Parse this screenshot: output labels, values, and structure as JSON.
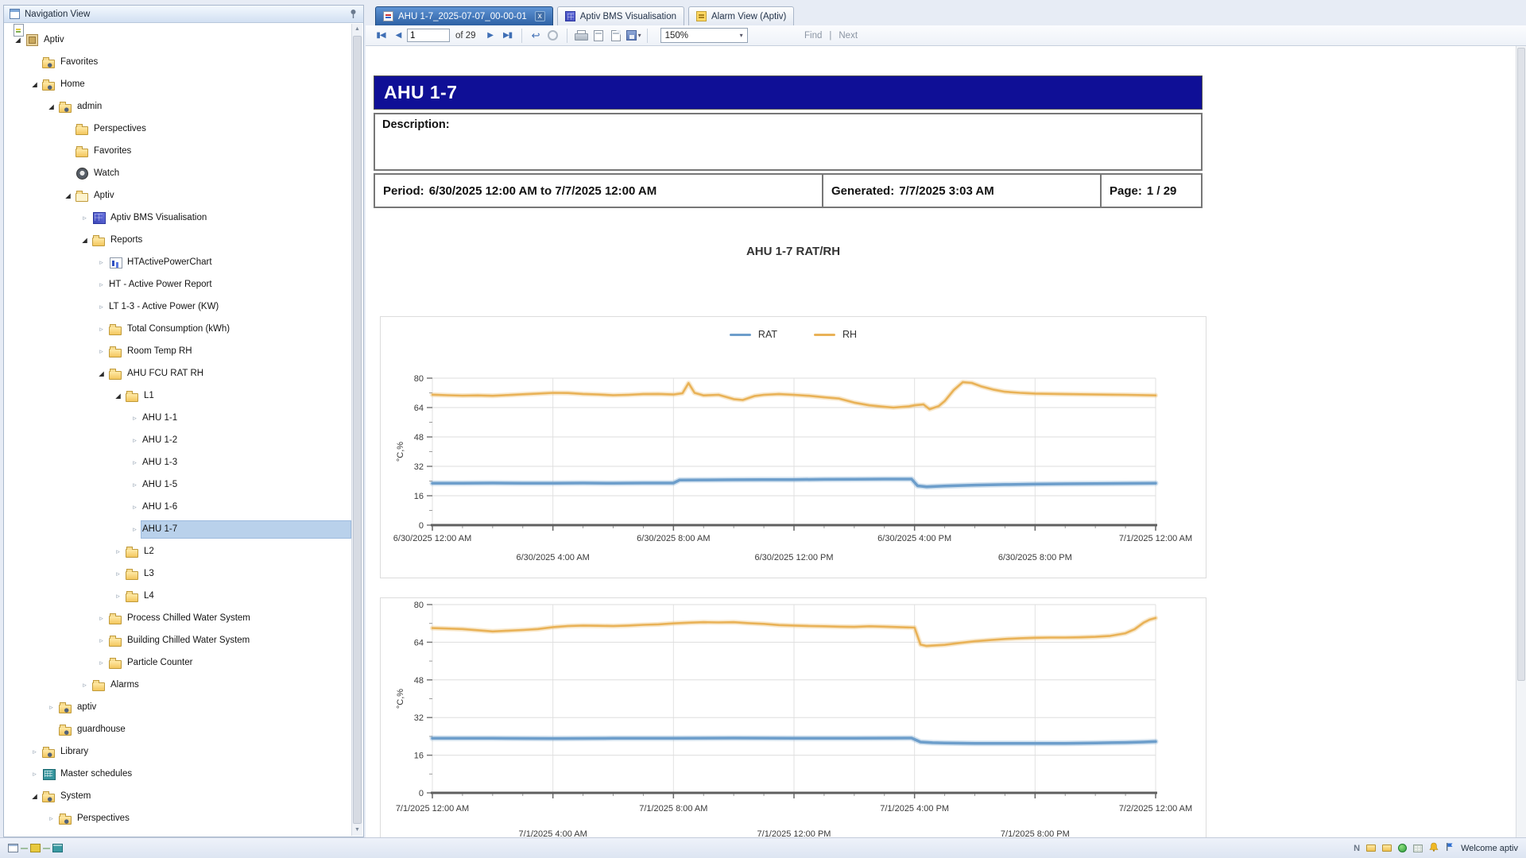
{
  "nav_panel": {
    "title": "Navigation View",
    "items": [
      {
        "label": "Aptiv",
        "depth": 0,
        "icon": "host",
        "expand": "open"
      },
      {
        "label": "Favorites",
        "depth": 1,
        "icon": "folder-mark",
        "expand": "none"
      },
      {
        "label": "Home",
        "depth": 1,
        "icon": "folder-mark",
        "expand": "open"
      },
      {
        "label": "admin",
        "depth": 2,
        "icon": "folder-mark",
        "expand": "open"
      },
      {
        "label": "Perspectives",
        "depth": 3,
        "icon": "folder",
        "expand": "none"
      },
      {
        "label": "Favorites",
        "depth": 3,
        "icon": "folder",
        "expand": "none"
      },
      {
        "label": "Watch",
        "depth": 3,
        "icon": "watch",
        "expand": "none"
      },
      {
        "label": "Aptiv",
        "depth": 3,
        "icon": "folder-pale",
        "expand": "open"
      },
      {
        "label": "Aptiv BMS Visualisation",
        "depth": 4,
        "icon": "grid",
        "expand": "closed"
      },
      {
        "label": "Reports",
        "depth": 4,
        "icon": "folder",
        "expand": "open"
      },
      {
        "label": "HTActivePowerChart",
        "depth": 5,
        "icon": "chart",
        "expand": "closed"
      },
      {
        "label": "HT - Active Power Report",
        "depth": 5,
        "icon": "report",
        "expand": "closed"
      },
      {
        "label": "LT 1-3 - Active Power (KW)",
        "depth": 5,
        "icon": "report",
        "expand": "closed"
      },
      {
        "label": "Total Consumption (kWh)",
        "depth": 5,
        "icon": "folder",
        "expand": "closed"
      },
      {
        "label": "Room Temp RH",
        "depth": 5,
        "icon": "folder",
        "expand": "closed"
      },
      {
        "label": "AHU FCU RAT RH",
        "depth": 5,
        "icon": "folder",
        "expand": "open"
      },
      {
        "label": "L1",
        "depth": 6,
        "icon": "folder",
        "expand": "open"
      },
      {
        "label": "AHU 1-1",
        "depth": 7,
        "icon": "report",
        "expand": "closed"
      },
      {
        "label": "AHU 1-2",
        "depth": 7,
        "icon": "report",
        "expand": "closed"
      },
      {
        "label": "AHU 1-3",
        "depth": 7,
        "icon": "report",
        "expand": "closed"
      },
      {
        "label": "AHU 1-5",
        "depth": 7,
        "icon": "report",
        "expand": "closed"
      },
      {
        "label": "AHU 1-6",
        "depth": 7,
        "icon": "report",
        "expand": "closed"
      },
      {
        "label": "AHU 1-7",
        "depth": 7,
        "icon": "report",
        "expand": "closed",
        "selected": true
      },
      {
        "label": "L2",
        "depth": 6,
        "icon": "folder",
        "expand": "closed"
      },
      {
        "label": "L3",
        "depth": 6,
        "icon": "folder",
        "expand": "closed"
      },
      {
        "label": "L4",
        "depth": 6,
        "icon": "folder",
        "expand": "closed"
      },
      {
        "label": "Process Chilled Water System",
        "depth": 5,
        "icon": "folder",
        "expand": "closed"
      },
      {
        "label": "Building Chilled Water System",
        "depth": 5,
        "icon": "folder",
        "expand": "closed"
      },
      {
        "label": "Particle Counter",
        "depth": 5,
        "icon": "folder",
        "expand": "closed"
      },
      {
        "label": "Alarms",
        "depth": 4,
        "icon": "folder",
        "expand": "closed"
      },
      {
        "label": "aptiv",
        "depth": 2,
        "icon": "folder-mark",
        "expand": "closed"
      },
      {
        "label": "guardhouse",
        "depth": 2,
        "icon": "folder-mark",
        "expand": "none"
      },
      {
        "label": "Library",
        "depth": 1,
        "icon": "folder-mark",
        "expand": "closed"
      },
      {
        "label": "Master schedules",
        "depth": 1,
        "icon": "table",
        "expand": "closed"
      },
      {
        "label": "System",
        "depth": 1,
        "icon": "folder-mark",
        "expand": "open"
      },
      {
        "label": "Perspectives",
        "depth": 2,
        "icon": "folder-mark",
        "expand": "closed"
      }
    ]
  },
  "tabs": [
    {
      "label": "AHU 1-7_2025-07-07_00-00-01",
      "icon": "report-page",
      "active": true,
      "close": "x"
    },
    {
      "label": "Aptiv BMS Visualisation",
      "icon": "bms-grid",
      "active": false
    },
    {
      "label": "Alarm View (Aptiv)",
      "icon": "alarm-page",
      "active": false
    }
  ],
  "toolbar": {
    "first_icon": "▮◀",
    "prev_icon": "◀",
    "page_value": "1",
    "of_label": "of 29",
    "next_icon": "▶",
    "last_icon": "▶▮",
    "back_icon": "↩",
    "export_caret": "▾",
    "zoom_value": "150%",
    "zoom_caret": "▾",
    "find_label": "Find",
    "divider": "|",
    "next_label": "Next"
  },
  "report": {
    "title": "AHU 1-7",
    "description_label": "Description:",
    "period_label": "Period:",
    "period_value": "6/30/2025 12:00 AM to 7/7/2025 12:00 AM",
    "generated_label": "Generated:",
    "generated_value": "7/7/2025 3:03 AM",
    "page_label": "Page:",
    "page_value": "1 / 29"
  },
  "status_bar": {
    "welcome": "Welcome aptiv"
  },
  "colors": {
    "report_band": "#0f0f96",
    "rat": "#6d9ecb",
    "rh": "#e9b257",
    "selection": "#b9d1eb",
    "active_tab": "#2e61a4"
  },
  "chart_data": [
    {
      "type": "line",
      "title": "AHU 1-7 RAT/RH",
      "xlabel": "",
      "ylabel": "°C,%",
      "ylim": [
        0,
        80
      ],
      "yticks": [
        0,
        16,
        32,
        48,
        64,
        80
      ],
      "yticks_minor": [
        8,
        24,
        40,
        56,
        72
      ],
      "xlim": [
        0,
        24
      ],
      "grid_hours": [
        0,
        4,
        8,
        12,
        16,
        20,
        24
      ],
      "grid": true,
      "legend_position": "top",
      "xticks_row1": [
        {
          "h": 0,
          "label": "6/30/2025 12:00 AM"
        },
        {
          "h": 8,
          "label": "6/30/2025 8:00 AM"
        },
        {
          "h": 16,
          "label": "6/30/2025 4:00 PM"
        },
        {
          "h": 24,
          "label": "7/1/2025 12:00 AM"
        }
      ],
      "xticks_row2": [
        {
          "h": 4,
          "label": "6/30/2025 4:00 AM"
        },
        {
          "h": 12,
          "label": "6/30/2025 12:00 PM"
        },
        {
          "h": 20,
          "label": "6/30/2025 8:00 PM"
        }
      ],
      "legend": [
        "RAT",
        "RH"
      ],
      "series": [
        {
          "name": "RAT",
          "color": "#6d9ecb",
          "width": 3.5,
          "points": [
            [
              0,
              22.8
            ],
            [
              1,
              22.8
            ],
            [
              2,
              22.9
            ],
            [
              3,
              22.8
            ],
            [
              4,
              22.8
            ],
            [
              5,
              22.9
            ],
            [
              6,
              22.8
            ],
            [
              7,
              22.9
            ],
            [
              8,
              22.9
            ],
            [
              8.2,
              24.5
            ],
            [
              9,
              24.6
            ],
            [
              10,
              24.7
            ],
            [
              11,
              24.8
            ],
            [
              12,
              24.8
            ],
            [
              13,
              24.9
            ],
            [
              14,
              25.0
            ],
            [
              15,
              25.1
            ],
            [
              15.9,
              25.1
            ],
            [
              16.1,
              21.4
            ],
            [
              16.4,
              20.9
            ],
            [
              17,
              21.3
            ],
            [
              18,
              21.8
            ],
            [
              19,
              22.1
            ],
            [
              20,
              22.3
            ],
            [
              21,
              22.5
            ],
            [
              22,
              22.6
            ],
            [
              23,
              22.7
            ],
            [
              24,
              22.8
            ]
          ]
        },
        {
          "name": "RH",
          "color": "#e9b257",
          "width": 2.6,
          "points": [
            [
              0,
              71
            ],
            [
              0.5,
              70.7
            ],
            [
              1,
              70.5
            ],
            [
              1.5,
              70.6
            ],
            [
              2,
              70.4
            ],
            [
              2.5,
              70.8
            ],
            [
              3,
              71.2
            ],
            [
              3.5,
              71.6
            ],
            [
              4,
              72
            ],
            [
              4.5,
              71.9
            ],
            [
              5,
              71.4
            ],
            [
              5.5,
              71.1
            ],
            [
              6,
              70.7
            ],
            [
              6.5,
              70.9
            ],
            [
              7,
              71.3
            ],
            [
              7.5,
              71.4
            ],
            [
              8,
              71.1
            ],
            [
              8.3,
              71.8
            ],
            [
              8.5,
              77.3
            ],
            [
              8.7,
              72
            ],
            [
              9,
              70.6
            ],
            [
              9.5,
              70.9
            ],
            [
              10,
              68.6
            ],
            [
              10.3,
              68.1
            ],
            [
              10.7,
              70.3
            ],
            [
              11,
              70.9
            ],
            [
              11.5,
              71.3
            ],
            [
              12,
              70.9
            ],
            [
              12.5,
              70.4
            ],
            [
              13,
              69.6
            ],
            [
              13.5,
              68.9
            ],
            [
              14,
              66.7
            ],
            [
              14.5,
              65.2
            ],
            [
              15,
              64.4
            ],
            [
              15.3,
              64.0
            ],
            [
              15.8,
              64.6
            ],
            [
              16,
              65.2
            ],
            [
              16.3,
              65.7
            ],
            [
              16.5,
              63.1
            ],
            [
              16.8,
              64.8
            ],
            [
              17,
              67.5
            ],
            [
              17.3,
              73.5
            ],
            [
              17.6,
              77.8
            ],
            [
              17.9,
              77.4
            ],
            [
              18.2,
              75.6
            ],
            [
              18.6,
              73.8
            ],
            [
              19,
              72.6
            ],
            [
              19.5,
              72.0
            ],
            [
              20,
              71.6
            ],
            [
              21,
              71.3
            ],
            [
              22,
              71.1
            ],
            [
              23,
              70.9
            ],
            [
              24,
              70.6
            ]
          ]
        }
      ]
    },
    {
      "type": "line",
      "title": "",
      "xlabel": "",
      "ylabel": "°C,%",
      "ylim": [
        0,
        80
      ],
      "yticks": [
        0,
        16,
        32,
        48,
        64,
        80
      ],
      "yticks_minor": [
        8,
        24,
        40,
        56,
        72
      ],
      "xlim": [
        0,
        24
      ],
      "grid_hours": [
        0,
        4,
        8,
        12,
        16,
        20,
        24
      ],
      "grid": true,
      "legend_position": "none",
      "xticks_row1": [
        {
          "h": 0,
          "label": "7/1/2025 12:00 AM"
        },
        {
          "h": 8,
          "label": "7/1/2025 8:00 AM"
        },
        {
          "h": 16,
          "label": "7/1/2025 4:00 PM"
        },
        {
          "h": 24,
          "label": "7/2/2025 12:00 AM"
        }
      ],
      "xticks_row2": [
        {
          "h": 4,
          "label": "7/1/2025 4:00 AM"
        },
        {
          "h": 12,
          "label": "7/1/2025 12:00 PM"
        },
        {
          "h": 20,
          "label": "7/1/2025 8:00 PM"
        }
      ],
      "legend": [],
      "series": [
        {
          "name": "RAT",
          "color": "#6d9ecb",
          "width": 3.5,
          "points": [
            [
              0,
              23.2
            ],
            [
              2,
              23.2
            ],
            [
              4,
              23.1
            ],
            [
              6,
              23.2
            ],
            [
              8,
              23.2
            ],
            [
              10,
              23.3
            ],
            [
              12,
              23.2
            ],
            [
              14,
              23.2
            ],
            [
              15.9,
              23.3
            ],
            [
              16.2,
              21.6
            ],
            [
              16.6,
              21.3
            ],
            [
              17,
              21.2
            ],
            [
              18,
              21.0
            ],
            [
              19,
              21.0
            ],
            [
              20,
              21.0
            ],
            [
              21,
              21.0
            ],
            [
              22,
              21.2
            ],
            [
              23,
              21.4
            ],
            [
              23.6,
              21.6
            ],
            [
              24,
              21.8
            ]
          ]
        },
        {
          "name": "RH",
          "color": "#e9b257",
          "width": 2.6,
          "points": [
            [
              0,
              70.0
            ],
            [
              0.5,
              69.8
            ],
            [
              1,
              69.6
            ],
            [
              1.5,
              69.1
            ],
            [
              2,
              68.6
            ],
            [
              2.5,
              68.9
            ],
            [
              3,
              69.2
            ],
            [
              3.5,
              69.6
            ],
            [
              4,
              70.4
            ],
            [
              4.5,
              70.9
            ],
            [
              5,
              71.1
            ],
            [
              5.5,
              71.0
            ],
            [
              6,
              70.9
            ],
            [
              6.5,
              71.1
            ],
            [
              7,
              71.4
            ],
            [
              7.5,
              71.6
            ],
            [
              8,
              72.0
            ],
            [
              8.5,
              72.3
            ],
            [
              9,
              72.5
            ],
            [
              9.5,
              72.4
            ],
            [
              10,
              72.5
            ],
            [
              10.5,
              72.1
            ],
            [
              11,
              71.8
            ],
            [
              11.5,
              71.3
            ],
            [
              12,
              71.1
            ],
            [
              12.5,
              70.9
            ],
            [
              13,
              70.8
            ],
            [
              13.5,
              70.6
            ],
            [
              14,
              70.5
            ],
            [
              14.5,
              70.8
            ],
            [
              15,
              70.6
            ],
            [
              15.5,
              70.4
            ],
            [
              16,
              70.2
            ],
            [
              16.2,
              63.0
            ],
            [
              16.4,
              62.4
            ],
            [
              17,
              62.9
            ],
            [
              17.5,
              63.7
            ],
            [
              18,
              64.4
            ],
            [
              18.5,
              64.9
            ],
            [
              19,
              65.4
            ],
            [
              19.5,
              65.7
            ],
            [
              20,
              65.9
            ],
            [
              20.5,
              66.0
            ],
            [
              21,
              66.0
            ],
            [
              21.5,
              66.1
            ],
            [
              22,
              66.3
            ],
            [
              22.5,
              66.7
            ],
            [
              23,
              67.8
            ],
            [
              23.3,
              69.5
            ],
            [
              23.6,
              72.3
            ],
            [
              23.8,
              73.6
            ],
            [
              24,
              74.3
            ]
          ]
        }
      ]
    }
  ]
}
